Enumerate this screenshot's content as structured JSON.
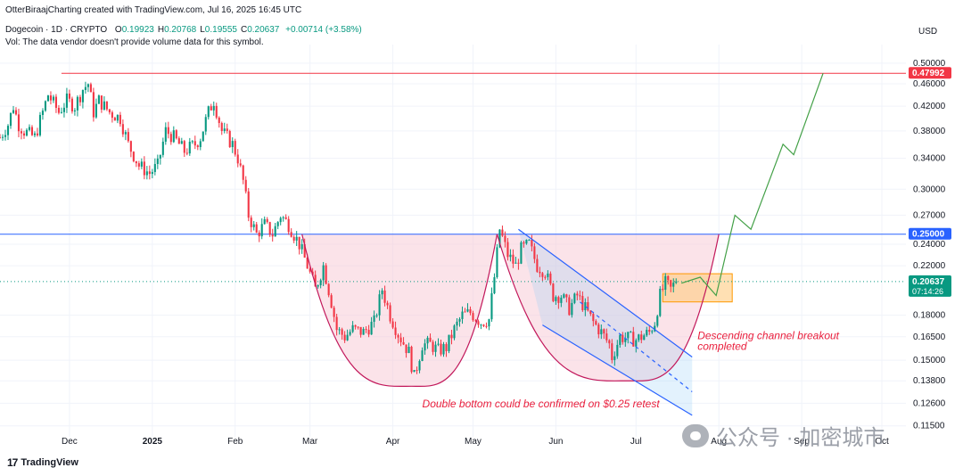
{
  "header": {
    "attribution": "OtterBiraajCharting created with TradingView.com, Jul 16, 2025 16:45 UTC",
    "symbol": "Dogecoin · 1D · CRYPTO",
    "ohlc": [
      {
        "k": "O",
        "v": "0.19923"
      },
      {
        "k": "H",
        "v": "0.20768"
      },
      {
        "k": "L",
        "v": "0.19555"
      },
      {
        "k": "C",
        "v": "0.20637"
      }
    ],
    "change": "+0.00714 (+3.58%)",
    "volume_note": "Vol: The data vendor doesn't provide volume data for this symbol."
  },
  "footer": {
    "logo": "TradingView"
  },
  "watermark": {
    "text": "公众号 · 加密城市"
  },
  "colors": {
    "up": "#089981",
    "down": "#f23645",
    "resistance": "#f23645",
    "support": "#2962ff",
    "cup_fill": "#f8c8d4",
    "channel": "#2962ff",
    "projection": "#43a047",
    "box_fill": "#ffcc80",
    "box_stroke": "#ff9800",
    "annotation": "#e91e3c"
  },
  "chart_data": {
    "type": "candlestick",
    "currency": "USD",
    "y_axis": {
      "unit_label": "USD",
      "ticks": [
        "0.50000",
        "0.46000",
        "0.42000",
        "0.38000",
        "0.34000",
        "0.30000",
        "0.27000",
        "0.24000",
        "0.22000",
        "0.18000",
        "0.16500",
        "0.15000",
        "0.13800",
        "0.12600",
        "0.11500"
      ],
      "range": [
        0.11,
        0.52
      ],
      "scale": "log"
    },
    "x_axis": {
      "labels": [
        {
          "text": "Dec",
          "date": "2024-12-01"
        },
        {
          "text": "2025",
          "date": "2025-01-01"
        },
        {
          "text": "Feb",
          "date": "2025-02-01"
        },
        {
          "text": "Mar",
          "date": "2025-03-01"
        },
        {
          "text": "Apr",
          "date": "2025-04-01"
        },
        {
          "text": "May",
          "date": "2025-05-01"
        },
        {
          "text": "Jun",
          "date": "2025-06-01"
        },
        {
          "text": "Jul",
          "date": "2025-07-01"
        },
        {
          "text": "Aug",
          "date": "2025-08-01"
        },
        {
          "text": "Sep",
          "date": "2025-09-01"
        },
        {
          "text": "Oct",
          "date": "2025-10-01"
        }
      ],
      "range": [
        "2024-11-05",
        "2025-10-10"
      ]
    },
    "price_tags": [
      {
        "value": "0.47992",
        "price": 0.47992,
        "color": "#f23645"
      },
      {
        "value": "0.25000",
        "price": 0.25,
        "color": "#2962ff"
      },
      {
        "value": "0.20637",
        "sub": "07:14:26",
        "price": 0.20637,
        "color": "#089981"
      }
    ],
    "levels": [
      {
        "name": "resistance",
        "price": 0.47992,
        "from": "2024-11-28",
        "color": "#f23645"
      },
      {
        "name": "support",
        "price": 0.25,
        "from": "2024-11-05",
        "color": "#2962ff"
      },
      {
        "name": "last-price",
        "price": 0.20637,
        "from": "2024-11-05",
        "color": "#089981",
        "dotted": true
      }
    ],
    "candle_path": [
      [
        "2024-11-05",
        0.37
      ],
      [
        "2024-11-08",
        0.39
      ],
      [
        "2024-11-10",
        0.42
      ],
      [
        "2024-11-12",
        0.39
      ],
      [
        "2024-11-14",
        0.38
      ],
      [
        "2024-11-18",
        0.37
      ],
      [
        "2024-11-21",
        0.41
      ],
      [
        "2024-11-23",
        0.44
      ],
      [
        "2024-11-27",
        0.41
      ],
      [
        "2024-11-30",
        0.43
      ],
      [
        "2024-12-03",
        0.42
      ],
      [
        "2024-12-06",
        0.45
      ],
      [
        "2024-12-08",
        0.46
      ],
      [
        "2024-12-10",
        0.41
      ],
      [
        "2024-12-12",
        0.43
      ],
      [
        "2024-12-16",
        0.41
      ],
      [
        "2024-12-20",
        0.4
      ],
      [
        "2024-12-23",
        0.36
      ],
      [
        "2024-12-27",
        0.33
      ],
      [
        "2024-12-31",
        0.32
      ],
      [
        "2025-01-03",
        0.33
      ],
      [
        "2025-01-06",
        0.38
      ],
      [
        "2025-01-09",
        0.37
      ],
      [
        "2025-01-13",
        0.35
      ],
      [
        "2025-01-17",
        0.36
      ],
      [
        "2025-01-19",
        0.37
      ],
      [
        "2025-01-22",
        0.41
      ],
      [
        "2025-01-24",
        0.43
      ],
      [
        "2025-01-27",
        0.38
      ],
      [
        "2025-01-31",
        0.36
      ],
      [
        "2025-02-02",
        0.34
      ],
      [
        "2025-02-04",
        0.31
      ],
      [
        "2025-02-06",
        0.27
      ],
      [
        "2025-02-09",
        0.25
      ],
      [
        "2025-02-12",
        0.26
      ],
      [
        "2025-02-15",
        0.25
      ],
      [
        "2025-02-18",
        0.27
      ],
      [
        "2025-02-21",
        0.26
      ],
      [
        "2025-02-25",
        0.24
      ],
      [
        "2025-02-28",
        0.22
      ],
      [
        "2025-03-03",
        0.2
      ],
      [
        "2025-03-06",
        0.22
      ],
      [
        "2025-03-09",
        0.19
      ],
      [
        "2025-03-11",
        0.17
      ],
      [
        "2025-03-14",
        0.165
      ],
      [
        "2025-03-17",
        0.17
      ],
      [
        "2025-03-21",
        0.168
      ],
      [
        "2025-03-25",
        0.175
      ],
      [
        "2025-03-28",
        0.2
      ],
      [
        "2025-03-31",
        0.18
      ],
      [
        "2025-04-03",
        0.167
      ],
      [
        "2025-04-07",
        0.155
      ],
      [
        "2025-04-09",
        0.14
      ],
      [
        "2025-04-12",
        0.16
      ],
      [
        "2025-04-15",
        0.16
      ],
      [
        "2025-04-18",
        0.156
      ],
      [
        "2025-04-21",
        0.158
      ],
      [
        "2025-04-24",
        0.17
      ],
      [
        "2025-04-27",
        0.18
      ],
      [
        "2025-04-30",
        0.182
      ],
      [
        "2025-05-04",
        0.175
      ],
      [
        "2025-05-07",
        0.177
      ],
      [
        "2025-05-09",
        0.21
      ],
      [
        "2025-05-11",
        0.255
      ],
      [
        "2025-05-14",
        0.23
      ],
      [
        "2025-05-17",
        0.22
      ],
      [
        "2025-05-19",
        0.235
      ],
      [
        "2025-05-22",
        0.24
      ],
      [
        "2025-05-25",
        0.22
      ],
      [
        "2025-05-28",
        0.215
      ],
      [
        "2025-05-31",
        0.195
      ],
      [
        "2025-06-03",
        0.195
      ],
      [
        "2025-06-06",
        0.185
      ],
      [
        "2025-06-09",
        0.195
      ],
      [
        "2025-06-12",
        0.185
      ],
      [
        "2025-06-15",
        0.175
      ],
      [
        "2025-06-18",
        0.168
      ],
      [
        "2025-06-21",
        0.16
      ],
      [
        "2025-06-22",
        0.152
      ],
      [
        "2025-06-25",
        0.165
      ],
      [
        "2025-06-28",
        0.164
      ],
      [
        "2025-07-01",
        0.163
      ],
      [
        "2025-07-04",
        0.166
      ],
      [
        "2025-07-06",
        0.168
      ],
      [
        "2025-07-08",
        0.175
      ],
      [
        "2025-07-10",
        0.195
      ],
      [
        "2025-07-12",
        0.205
      ],
      [
        "2025-07-14",
        0.2
      ],
      [
        "2025-07-16",
        0.20637
      ]
    ],
    "annotations": {
      "cup_left": {
        "from": "2025-02-26",
        "bottom": "2025-04-08",
        "to": "2025-05-10",
        "top_price": 0.25,
        "bottom_price": 0.135
      },
      "cup_right": {
        "from": "2025-05-10",
        "bottom": "2025-06-28",
        "to": "2025-08-01",
        "top_price": 0.25,
        "bottom_price": 0.138
      },
      "channel": {
        "upper": [
          [
            "2025-05-18",
            0.255
          ],
          [
            "2025-07-22",
            0.152
          ]
        ],
        "lower": [
          [
            "2025-05-27",
            0.173
          ],
          [
            "2025-07-22",
            0.12
          ]
        ],
        "midline": [
          [
            "2025-06-10",
            0.19
          ],
          [
            "2025-07-22",
            0.132
          ]
        ]
      },
      "consolidation_box": {
        "from": "2025-07-11",
        "to": "2025-08-06",
        "high": 0.213,
        "low": 0.19
      },
      "projection": [
        [
          "2025-07-18",
          0.205
        ],
        [
          "2025-07-25",
          0.21
        ],
        [
          "2025-07-31",
          0.195
        ],
        [
          "2025-08-07",
          0.27
        ],
        [
          "2025-08-13",
          0.255
        ],
        [
          "2025-08-25",
          0.36
        ],
        [
          "2025-08-29",
          0.345
        ],
        [
          "2025-09-09",
          0.48
        ]
      ],
      "labels": [
        {
          "text": "Descending channel breakout",
          "date": "2025-07-24",
          "price": 0.1635
        },
        {
          "text": "completed",
          "date": "2025-07-24",
          "price": 0.1565
        },
        {
          "text": "Double bottom could be confirmed on $0.25 retest",
          "date": "2025-04-12",
          "price": 0.124
        }
      ]
    }
  }
}
